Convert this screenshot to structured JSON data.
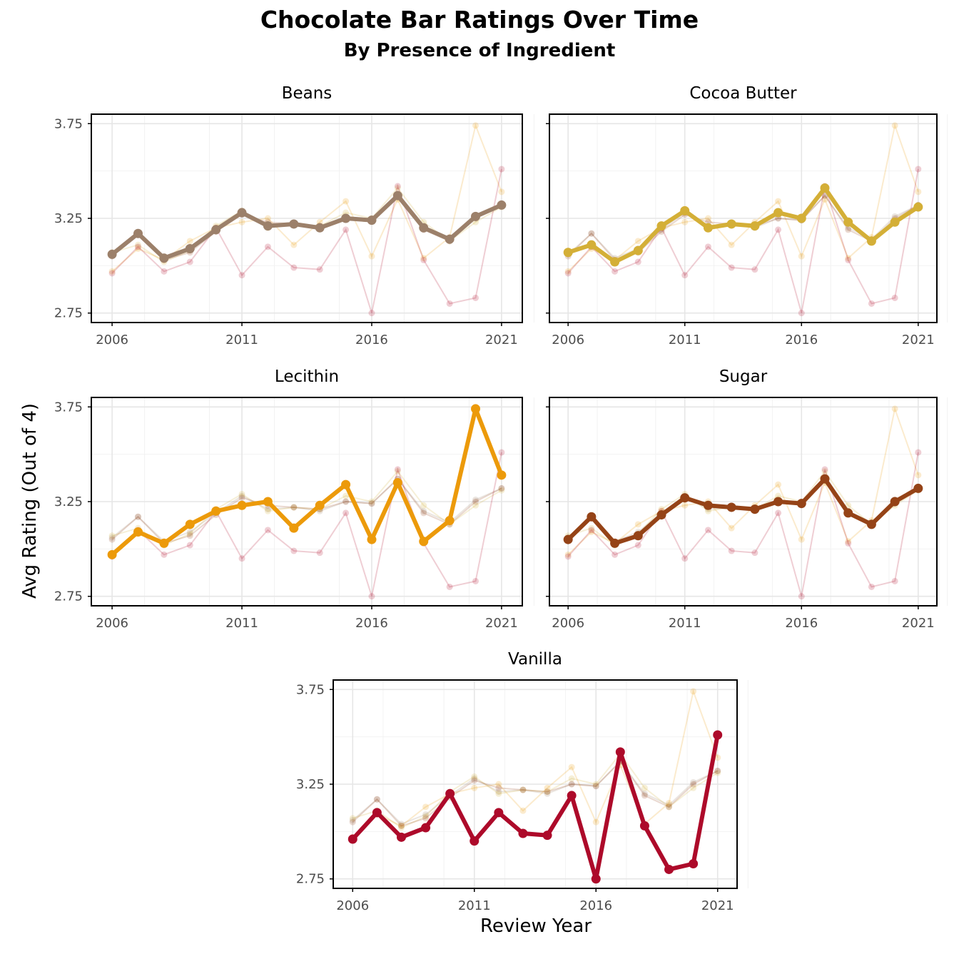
{
  "title": "Chocolate Bar Ratings Over Time",
  "subtitle": "By Presence of Ingredient",
  "chart_data": {
    "type": "line",
    "facet_by": "ingredient",
    "xlabel": "Review Year",
    "ylabel": "Avg Rating (Out of 4)",
    "x": [
      2006,
      2007,
      2008,
      2009,
      2010,
      2011,
      2012,
      2013,
      2014,
      2015,
      2016,
      2017,
      2018,
      2019,
      2020,
      2021
    ],
    "xticks": [
      2006,
      2011,
      2016,
      2021
    ],
    "yticks": [
      2.75,
      3.25,
      3.75
    ],
    "ylim": [
      2.7,
      3.8
    ],
    "grid": true,
    "legend": "none",
    "series": [
      {
        "name": "Beans",
        "color": "#9c806a",
        "values": [
          3.06,
          3.17,
          3.04,
          3.09,
          3.19,
          3.28,
          3.21,
          3.22,
          3.2,
          3.25,
          3.24,
          3.37,
          3.2,
          3.14,
          3.26,
          3.32
        ]
      },
      {
        "name": "Cocoa Butter",
        "color": "#d4af37",
        "values": [
          3.07,
          3.11,
          3.02,
          3.08,
          3.21,
          3.29,
          3.2,
          3.22,
          3.21,
          3.28,
          3.25,
          3.41,
          3.23,
          3.13,
          3.23,
          3.31
        ]
      },
      {
        "name": "Lecithin",
        "color": "#ec9a0a",
        "values": [
          2.97,
          3.09,
          3.03,
          3.13,
          3.2,
          3.23,
          3.25,
          3.11,
          3.23,
          3.34,
          3.05,
          3.35,
          3.04,
          3.15,
          3.74,
          3.39
        ]
      },
      {
        "name": "Sugar",
        "color": "#954317",
        "values": [
          3.05,
          3.17,
          3.03,
          3.07,
          3.18,
          3.27,
          3.23,
          3.22,
          3.21,
          3.25,
          3.24,
          3.37,
          3.19,
          3.13,
          3.25,
          3.32
        ]
      },
      {
        "name": "Vanilla",
        "color": "#ad0a2a",
        "values": [
          2.96,
          3.1,
          2.97,
          3.02,
          3.2,
          2.95,
          3.1,
          2.99,
          2.98,
          3.19,
          2.75,
          3.42,
          3.03,
          2.8,
          2.83,
          3.51
        ]
      }
    ]
  }
}
